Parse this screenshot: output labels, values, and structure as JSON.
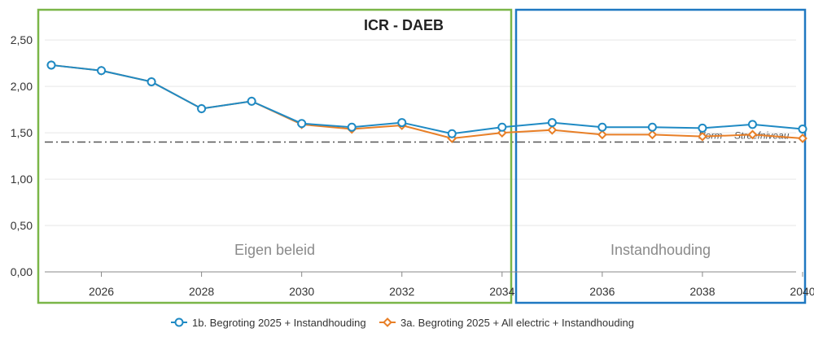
{
  "chart_data": {
    "type": "line",
    "title": "ICR - DAEB",
    "x": [
      2025,
      2026,
      2027,
      2028,
      2029,
      2030,
      2031,
      2032,
      2033,
      2034,
      2035,
      2036,
      2037,
      2038,
      2039,
      2040
    ],
    "xticks": [
      "2026",
      "2028",
      "2030",
      "2032",
      "2034",
      "2036",
      "2038",
      "2040"
    ],
    "yticks": [
      "0,00",
      "0,50",
      "1,00",
      "1,50",
      "2,00",
      "2,50"
    ],
    "ylim": [
      0,
      2.8
    ],
    "xlim": [
      2025,
      2040
    ],
    "series": [
      {
        "name": "1b. Begroting 2025 + Instandhouding",
        "color": "#1f8ac4",
        "marker": "circle",
        "values": [
          2.23,
          2.17,
          2.05,
          1.76,
          1.84,
          1.6,
          1.56,
          1.61,
          1.49,
          1.56,
          1.61,
          1.56,
          1.56,
          1.55,
          1.59,
          1.54
        ]
      },
      {
        "name": "3a. Begroting 2025 + All electric + Instandhouding",
        "color": "#e87f27",
        "marker": "diamond",
        "values": [
          2.23,
          2.17,
          2.05,
          1.76,
          1.84,
          1.59,
          1.54,
          1.58,
          1.44,
          1.5,
          1.53,
          1.48,
          1.48,
          1.46,
          1.48,
          1.44
        ]
      }
    ],
    "reference_lines": [
      {
        "label": "Norm",
        "value": 1.4
      },
      {
        "label": "Streefniveau",
        "value": 1.4
      }
    ],
    "regions": [
      {
        "label": "Eigen beleid",
        "from": 2025,
        "to": 2034.3,
        "color": "#7ab648"
      },
      {
        "label": "Instandhouding",
        "from": 2034.4,
        "to": 2040.2,
        "color": "#1f78c1"
      }
    ],
    "grid": true,
    "legend_position": "bottom"
  }
}
